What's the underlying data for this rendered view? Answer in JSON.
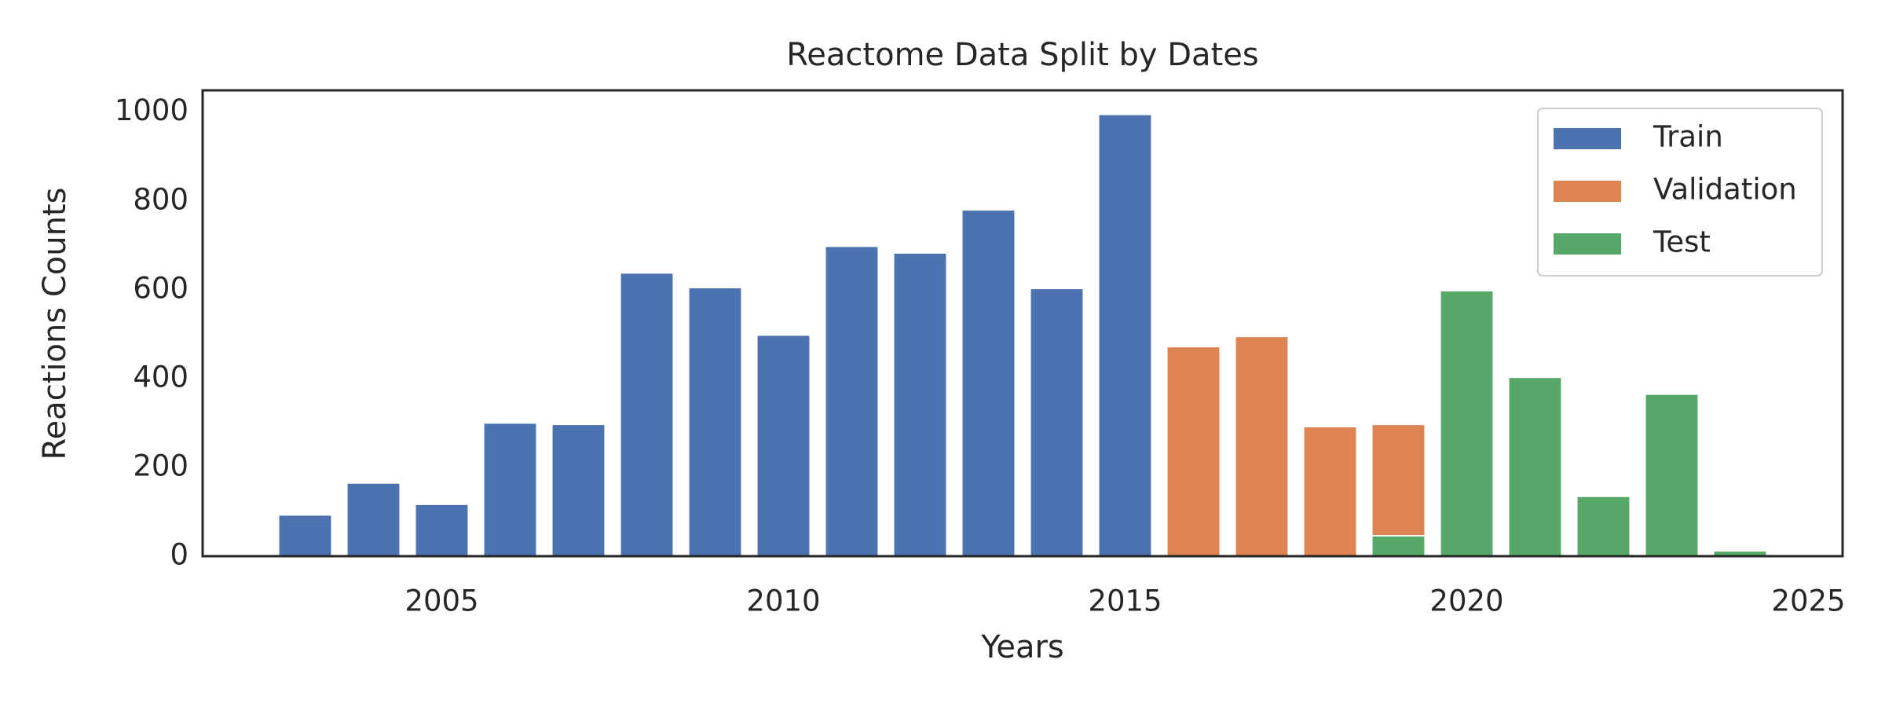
{
  "chart_data": {
    "type": "bar",
    "title": "Reactome Data Split by Dates",
    "x_label": "Years",
    "y_label": "Reactions Counts",
    "series": [
      {
        "name": "Train",
        "color": "#4c72b0",
        "x": [
          2003,
          2004,
          2005,
          2006,
          2007,
          2008,
          2009,
          2010,
          2011,
          2012,
          2013,
          2014,
          2015
        ],
        "values": [
          93,
          165,
          117,
          300,
          297,
          638,
          605,
          498,
          698,
          683,
          780,
          603,
          995
        ]
      },
      {
        "name": "Validation",
        "color": "#dd8452",
        "x": [
          2016,
          2017,
          2018,
          2019
        ],
        "values": [
          472,
          495,
          292,
          297
        ]
      },
      {
        "name": "Test",
        "color": "#55a868",
        "x": [
          2019,
          2020,
          2021,
          2022,
          2023,
          2024
        ],
        "values": [
          46,
          598,
          403,
          135,
          365,
          12
        ]
      }
    ],
    "xlim": [
      2001.5,
      2025.5
    ],
    "xticks": [
      2005,
      2010,
      2015,
      2020,
      2025
    ],
    "ylim": [
      0,
      1049
    ],
    "yticks": [
      0,
      200,
      400,
      600,
      800,
      1000
    ],
    "grid": false,
    "legend": "upper right"
  }
}
